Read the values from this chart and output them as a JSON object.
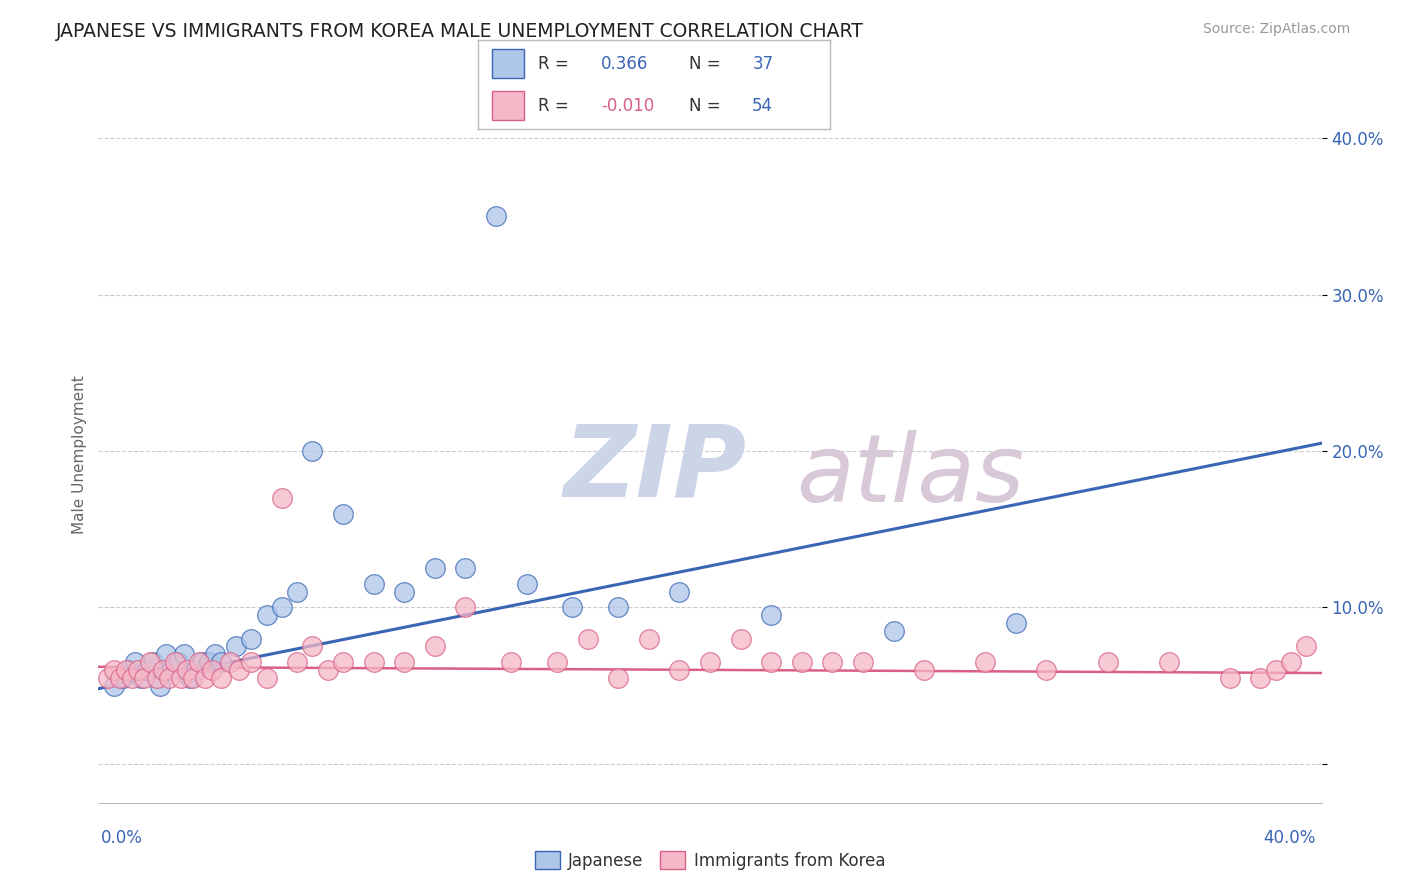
{
  "title": "JAPANESE VS IMMIGRANTS FROM KOREA MALE UNEMPLOYMENT CORRELATION CHART",
  "source": "Source: ZipAtlas.com",
  "ylabel": "Male Unemployment",
  "legend_japanese": "Japanese",
  "legend_korea": "Immigrants from Korea",
  "r_japanese": 0.366,
  "n_japanese": 37,
  "r_korea": -0.01,
  "n_korea": 54,
  "xlim": [
    0.0,
    0.4
  ],
  "ylim": [
    -0.025,
    0.42
  ],
  "yticks": [
    0.0,
    0.1,
    0.2,
    0.3,
    0.4
  ],
  "ytick_labels": [
    "",
    "10.0%",
    "20.0%",
    "30.0%",
    "40.0%"
  ],
  "color_japanese": "#aec6e8",
  "color_korea": "#f5b8c8",
  "line_color_japanese": "#3a65b5",
  "line_color_korea": "#d95f85",
  "watermark_zip_color": "#ccd5e8",
  "watermark_atlas_color": "#d8c8d8",
  "background_color": "#ffffff",
  "japanese_x": [
    0.005,
    0.008,
    0.01,
    0.012,
    0.014,
    0.016,
    0.018,
    0.02,
    0.022,
    0.024,
    0.026,
    0.028,
    0.03,
    0.032,
    0.034,
    0.036,
    0.038,
    0.04,
    0.045,
    0.05,
    0.055,
    0.06,
    0.065,
    0.07,
    0.08,
    0.09,
    0.1,
    0.11,
    0.12,
    0.13,
    0.14,
    0.155,
    0.17,
    0.19,
    0.22,
    0.26,
    0.3
  ],
  "japanese_y": [
    0.05,
    0.055,
    0.06,
    0.065,
    0.055,
    0.06,
    0.065,
    0.05,
    0.07,
    0.06,
    0.065,
    0.07,
    0.055,
    0.06,
    0.065,
    0.065,
    0.07,
    0.065,
    0.075,
    0.08,
    0.095,
    0.1,
    0.11,
    0.2,
    0.16,
    0.115,
    0.11,
    0.125,
    0.125,
    0.35,
    0.115,
    0.1,
    0.1,
    0.11,
    0.095,
    0.085,
    0.09
  ],
  "korea_x": [
    0.003,
    0.005,
    0.007,
    0.009,
    0.011,
    0.013,
    0.015,
    0.017,
    0.019,
    0.021,
    0.023,
    0.025,
    0.027,
    0.029,
    0.031,
    0.033,
    0.035,
    0.037,
    0.04,
    0.043,
    0.046,
    0.05,
    0.055,
    0.06,
    0.065,
    0.07,
    0.075,
    0.08,
    0.09,
    0.1,
    0.11,
    0.12,
    0.135,
    0.15,
    0.16,
    0.17,
    0.18,
    0.19,
    0.2,
    0.21,
    0.22,
    0.23,
    0.24,
    0.25,
    0.27,
    0.29,
    0.31,
    0.33,
    0.35,
    0.37,
    0.38,
    0.385,
    0.39,
    0.395
  ],
  "korea_y": [
    0.055,
    0.06,
    0.055,
    0.06,
    0.055,
    0.06,
    0.055,
    0.065,
    0.055,
    0.06,
    0.055,
    0.065,
    0.055,
    0.06,
    0.055,
    0.065,
    0.055,
    0.06,
    0.055,
    0.065,
    0.06,
    0.065,
    0.055,
    0.17,
    0.065,
    0.075,
    0.06,
    0.065,
    0.065,
    0.065,
    0.075,
    0.1,
    0.065,
    0.065,
    0.08,
    0.055,
    0.08,
    0.06,
    0.065,
    0.08,
    0.065,
    0.065,
    0.065,
    0.065,
    0.06,
    0.065,
    0.06,
    0.065,
    0.065,
    0.055,
    0.055,
    0.06,
    0.065,
    0.075
  ],
  "reg_line_japanese": [
    0.048,
    0.205
  ],
  "reg_line_korea": [
    0.062,
    0.058
  ]
}
